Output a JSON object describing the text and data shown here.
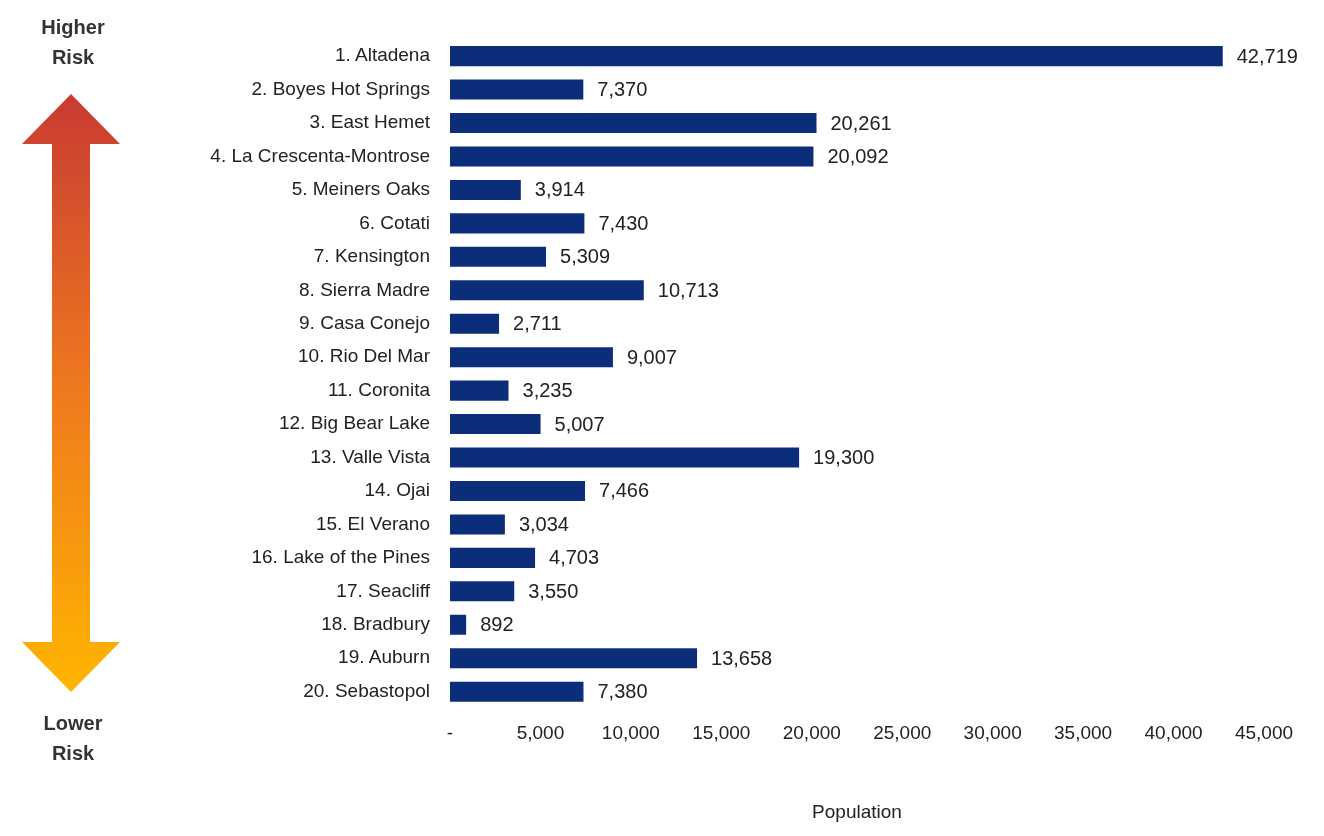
{
  "chart_data": {
    "type": "bar",
    "orientation": "horizontal",
    "xlabel": "Population",
    "categories": [
      "1. Altadena",
      "2. Boyes Hot Springs",
      "3. East Hemet",
      "4. La Crescenta-Montrose",
      "5. Meiners Oaks",
      "6. Cotati",
      "7. Kensington",
      "8. Sierra Madre",
      "9. Casa Conejo",
      "10. Rio Del Mar",
      "11. Coronita",
      "12. Big Bear Lake",
      "13. Valle Vista",
      "14. Ojai",
      "15. El Verano",
      "16. Lake of the Pines",
      "17. Seacliff",
      "18. Bradbury",
      "19. Auburn",
      "20. Sebastopol"
    ],
    "values": [
      42719,
      7370,
      20261,
      20092,
      3914,
      7430,
      5309,
      10713,
      2711,
      9007,
      3235,
      5007,
      19300,
      7466,
      3034,
      4703,
      3550,
      892,
      13658,
      7380
    ],
    "value_labels": [
      "42,719",
      "7,370",
      "20,261",
      "20,092",
      "3,914",
      "7,430",
      "5,309",
      "10,713",
      "2,711",
      "9,007",
      "3,235",
      "5,007",
      "19,300",
      "7,466",
      "3,034",
      "4,703",
      "3,550",
      "892",
      "13,658",
      "7,380"
    ],
    "color": "#0b2d7a",
    "xlim": [
      0,
      45000
    ],
    "xticks": [
      {
        "value": 0,
        "label": "-"
      },
      {
        "value": 5000,
        "label": "5,000"
      },
      {
        "value": 10000,
        "label": "10,000"
      },
      {
        "value": 15000,
        "label": "15,000"
      },
      {
        "value": 20000,
        "label": "20,000"
      },
      {
        "value": 25000,
        "label": "25,000"
      },
      {
        "value": 30000,
        "label": "30,000"
      },
      {
        "value": 35000,
        "label": "35,000"
      },
      {
        "value": 40000,
        "label": "40,000"
      },
      {
        "value": 45000,
        "label": "45,000"
      }
    ],
    "grid": false,
    "legend": false,
    "annotations": [
      "Higher Risk",
      "Lower Risk"
    ]
  }
}
